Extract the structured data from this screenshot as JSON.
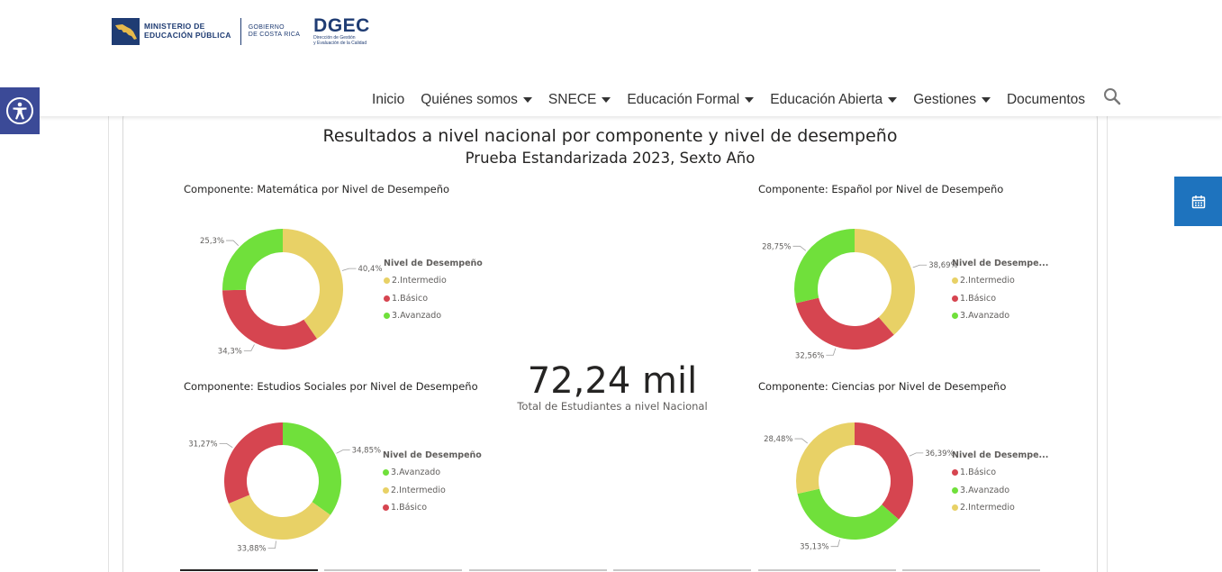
{
  "header": {
    "logo": {
      "mep_line1": "MINISTERIO DE",
      "mep_line2": "EDUCACIÓN PÚBLICA",
      "gob_line1": "GOBIERNO",
      "gob_line2": "DE COSTA RICA",
      "dgec": "DGEC",
      "dgec_sub1": "Dirección de Gestión",
      "dgec_sub2": "y Evaluación de la Calidad"
    },
    "nav": [
      {
        "label": "Inicio",
        "has_dropdown": false
      },
      {
        "label": "Quiénes somos",
        "has_dropdown": true
      },
      {
        "label": "SNECE",
        "has_dropdown": true
      },
      {
        "label": "Educación Formal",
        "has_dropdown": true
      },
      {
        "label": "Educación Abierta",
        "has_dropdown": true
      },
      {
        "label": "Gestiones",
        "has_dropdown": true
      },
      {
        "label": "Documentos",
        "has_dropdown": false
      }
    ],
    "search_icon": "search-icon",
    "accessibility_icon": "accessibility-icon",
    "calendar_icon": "calendar-icon"
  },
  "colors": {
    "intermedio": "#e8d166",
    "basico": "#d64550",
    "avanzado": "#70e03b",
    "accessibility_button": "#3b4a97",
    "calendar_button": "#1e73be",
    "logo_blue": "#1f3c73"
  },
  "report": {
    "title": "Resultados a nivel nacional por componente y nivel de desempeño",
    "subtitle": "Prueba Estandarizada 2023, Sexto Año",
    "kpi": {
      "value": "72,24 mil",
      "label": "Total de Estudiantes a nivel Nacional"
    }
  },
  "chart_data": [
    {
      "type": "pie",
      "variant": "donut",
      "title": "Componente: Matemática por Nivel de Desempeño",
      "legend_title": "Nivel de Desempeño",
      "legend_position": "right",
      "series": [
        {
          "name": "2.Intermedio",
          "value": 40.4,
          "label": "40,4%",
          "color": "#e8d166"
        },
        {
          "name": "1.Básico",
          "value": 34.3,
          "label": "34,3%",
          "color": "#d64550"
        },
        {
          "name": "3.Avanzado",
          "value": 25.3,
          "label": "25,3%",
          "color": "#70e03b"
        }
      ]
    },
    {
      "type": "pie",
      "variant": "donut",
      "title": "Componente: Español por Nivel de Desempeño",
      "legend_title": "Nivel de Desempe...",
      "legend_position": "right",
      "series": [
        {
          "name": "2.Intermedio",
          "value": 38.69,
          "label": "38,69%",
          "color": "#e8d166"
        },
        {
          "name": "1.Básico",
          "value": 32.56,
          "label": "32,56%",
          "color": "#d64550"
        },
        {
          "name": "3.Avanzado",
          "value": 28.75,
          "label": "28,75%",
          "color": "#70e03b"
        }
      ]
    },
    {
      "type": "pie",
      "variant": "donut",
      "title": "Componente: Estudios Sociales por Nivel de Desempeño",
      "legend_title": "Nivel de Desempeño",
      "legend_position": "right",
      "series": [
        {
          "name": "3.Avanzado",
          "value": 34.85,
          "label": "34,85%",
          "color": "#70e03b"
        },
        {
          "name": "2.Intermedio",
          "value": 33.88,
          "label": "33,88%",
          "color": "#e8d166"
        },
        {
          "name": "1.Básico",
          "value": 31.27,
          "label": "31,27%",
          "color": "#d64550"
        }
      ]
    },
    {
      "type": "pie",
      "variant": "donut",
      "title": "Componente: Ciencias por Nivel de Desempeño",
      "legend_title": "Nivel de Desempe...",
      "legend_position": "right",
      "series": [
        {
          "name": "1.Básico",
          "value": 36.39,
          "label": "36,39%",
          "color": "#d64550"
        },
        {
          "name": "3.Avanzado",
          "value": 35.13,
          "label": "35,13%",
          "color": "#70e03b"
        },
        {
          "name": "2.Intermedio",
          "value": 28.48,
          "label": "28,48%",
          "color": "#e8d166"
        }
      ]
    }
  ]
}
